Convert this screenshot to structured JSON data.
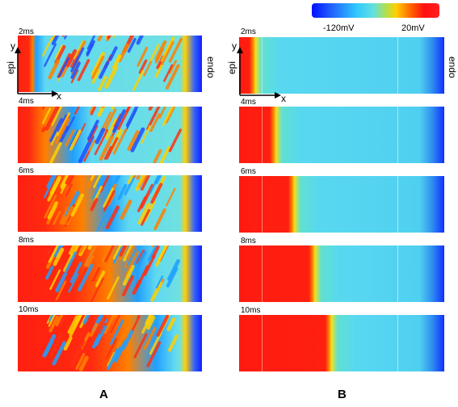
{
  "colorbar": {
    "min_label": "-120mV",
    "max_label": "20mV"
  },
  "labels": {
    "epi": "epi",
    "endo": "endo",
    "x_axis": "x",
    "y_axis": "y"
  },
  "panel_labels": {
    "a": "A",
    "b": "B"
  },
  "times": [
    "2ms",
    "4ms",
    "6ms",
    "8ms",
    "10ms"
  ],
  "front_fraction_B": [
    0.08,
    0.18,
    0.27,
    0.37,
    0.45
  ],
  "front_fraction_A": [
    0.1,
    0.35,
    0.55,
    0.7,
    0.8
  ]
}
